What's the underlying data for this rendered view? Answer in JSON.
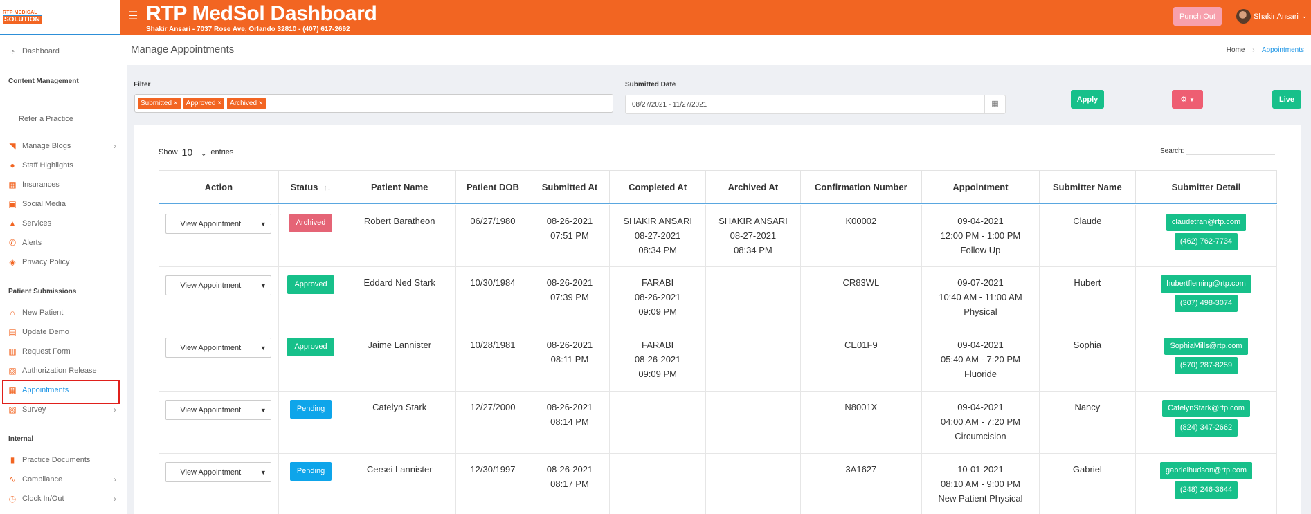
{
  "header": {
    "title": "RTP MedSol Dashboard",
    "subtitle": "Shakir Ansari - 7037 Rose Ave, Orlando 32810 - (407) 617-2692",
    "punch_label": "Punch Out",
    "user_name": "Shakir Ansari",
    "brand_color": "#f26522"
  },
  "logo": {
    "line1": "RTP MEDICAL",
    "line2": "SOLUTION"
  },
  "sidebar": {
    "dashboard": "Dashboard",
    "content_head": "Content Management",
    "refer": "Refer a Practice",
    "content_items": [
      "Manage Blogs",
      "Staff Highlights",
      "Insurances",
      "Social Media",
      "Services",
      "Alerts",
      "Privacy Policy"
    ],
    "patient_head": "Patient Submissions",
    "patient_items": [
      "New Patient",
      "Update Demo",
      "Request Form",
      "Authorization Release",
      "Appointments",
      "Survey"
    ],
    "internal_head": "Internal",
    "internal_items": [
      "Practice Documents",
      "Compliance",
      "Clock In/Out"
    ]
  },
  "page": {
    "title": "Manage Appointments",
    "crumb_home": "Home",
    "crumb_current": "Appointments"
  },
  "filter": {
    "label": "Filter",
    "tags": [
      "Submitted ×",
      "Approved ×",
      "Archived ×"
    ],
    "date_label": "Submitted Date",
    "date_value": "08/27/2021 - 11/27/2021",
    "apply": "Apply",
    "live": "Live"
  },
  "table_ctrl": {
    "show": "Show",
    "entries_value": "10",
    "entries": "entries",
    "search": "Search:"
  },
  "columns": [
    "Action",
    "Status",
    "Patient Name",
    "Patient DOB",
    "Submitted At",
    "Completed At",
    "Archived At",
    "Confirmation Number",
    "Appointment",
    "Submitter Name",
    "Submitter Detail"
  ],
  "action_label": "View Appointment",
  "rows": [
    {
      "status": "Archived",
      "status_color": "#e56476",
      "patient": "Robert Baratheon",
      "dob": "06/27/1980",
      "sub_date": "08-26-2021",
      "sub_time": "07:51 PM",
      "comp_by": "SHAKIR ANSARI",
      "comp_date": "08-27-2021",
      "comp_time": "08:34 PM",
      "arch_by": "SHAKIR ANSARI",
      "arch_date": "08-27-2021",
      "arch_time": "08:34 PM",
      "conf": "K00002",
      "appt_date": "09-04-2021",
      "appt_time": "12:00 PM - 1:00 PM",
      "appt_type": "Follow Up",
      "submitter": "Claude",
      "email": "claudetran@rtp.com",
      "phone": "(462) 762-7734"
    },
    {
      "status": "Approved",
      "status_color": "#17c08a",
      "patient": "Eddard Ned Stark",
      "dob": "10/30/1984",
      "sub_date": "08-26-2021",
      "sub_time": "07:39 PM",
      "comp_by": "FARABI",
      "comp_date": "08-26-2021",
      "comp_time": "09:09 PM",
      "arch_by": "",
      "arch_date": "",
      "arch_time": "",
      "conf": "CR83WL",
      "appt_date": "09-07-2021",
      "appt_time": "10:40 AM - 11:00 AM",
      "appt_type": "Physical",
      "submitter": "Hubert",
      "email": "hubertfleming@rtp.com",
      "phone": "(307) 498-3074"
    },
    {
      "status": "Approved",
      "status_color": "#17c08a",
      "patient": "Jaime Lannister",
      "dob": "10/28/1981",
      "sub_date": "08-26-2021",
      "sub_time": "08:11 PM",
      "comp_by": "FARABI",
      "comp_date": "08-26-2021",
      "comp_time": "09:09 PM",
      "arch_by": "",
      "arch_date": "",
      "arch_time": "",
      "conf": "CE01F9",
      "appt_date": "09-04-2021",
      "appt_time": "05:40 AM - 7:20 PM",
      "appt_type": "Fluoride",
      "submitter": "Sophia",
      "email": "SophiaMills@rtp.com",
      "phone": "(570) 287-8259"
    },
    {
      "status": "Pending",
      "status_color": "#0ea5ea",
      "patient": "Catelyn Stark",
      "dob": "12/27/2000",
      "sub_date": "08-26-2021",
      "sub_time": "08:14 PM",
      "comp_by": "",
      "comp_date": "",
      "comp_time": "",
      "arch_by": "",
      "arch_date": "",
      "arch_time": "",
      "conf": "N8001X",
      "appt_date": "09-04-2021",
      "appt_time": "04:00 AM - 7:20 PM",
      "appt_type": "Circumcision",
      "submitter": "Nancy",
      "email": "CatelynStark@rtp.com",
      "phone": "(824) 347-2662"
    },
    {
      "status": "Pending",
      "status_color": "#0ea5ea",
      "patient": "Cersei Lannister",
      "dob": "12/30/1997",
      "sub_date": "08-26-2021",
      "sub_time": "08:17 PM",
      "comp_by": "",
      "comp_date": "",
      "comp_time": "",
      "arch_by": "",
      "arch_date": "",
      "arch_time": "",
      "conf": "3A1627",
      "appt_date": "10-01-2021",
      "appt_time": "08:10 AM - 9:00 PM",
      "appt_type": "New Patient Physical",
      "submitter": "Gabriel",
      "email": "gabrielhudson@rtp.com",
      "phone": "(248) 246-3644"
    }
  ]
}
